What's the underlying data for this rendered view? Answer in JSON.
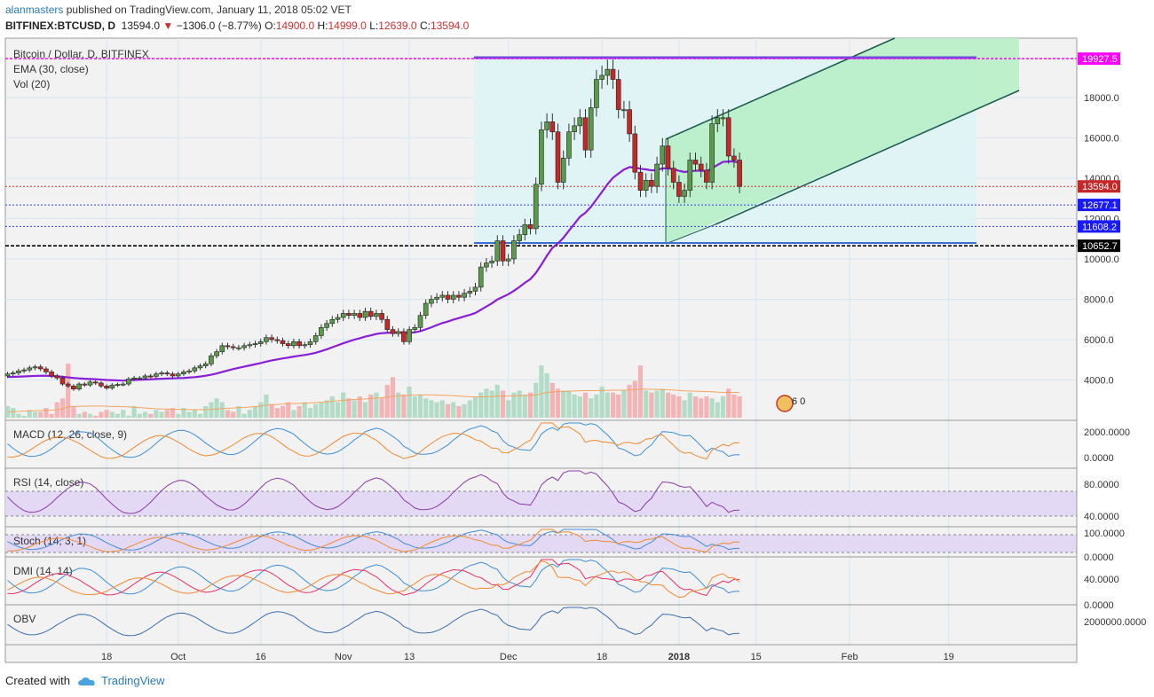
{
  "header": {
    "author": "alanmasters",
    "published_text": "published on TradingView.com, January 11, 2018 05:02 VET",
    "symbol": "BITFINEX:BTCUSD, D",
    "last": "13594.0",
    "arrow": "▼",
    "change": "−1306.0 (−8.77%)",
    "o_label": "O:",
    "o_value": "14900.0",
    "h_label": "H:",
    "h_value": "14999.0",
    "l_label": "L:",
    "l_value": "12639.0",
    "c_label": "C:",
    "c_value": "13594.0"
  },
  "footer": {
    "created_with": "Created with",
    "brand": "TradingView"
  },
  "chart_data": {
    "type": "candlestick",
    "title": "Bitcoin / Dollar, D, BITFINEX",
    "indicators_main": [
      "EMA (30, close)",
      "Vol (20)"
    ],
    "ylim": [
      2000,
      21000
    ],
    "price_ticks": [
      "4000.0",
      "6000.0",
      "8000.0",
      "10000.0",
      "12000.0",
      "14000.0",
      "16000.0",
      "18000.0"
    ],
    "x_ticks": [
      {
        "day": 18,
        "label": "18"
      },
      {
        "day": 31,
        "label": "Oct"
      },
      {
        "day": 46,
        "label": "16"
      },
      {
        "day": 61,
        "label": "Nov"
      },
      {
        "day": 73,
        "label": "13"
      },
      {
        "day": 91,
        "label": "Dec"
      },
      {
        "day": 108,
        "label": "18"
      },
      {
        "day": 122,
        "label": "2018"
      },
      {
        "day": 136,
        "label": "15"
      },
      {
        "day": 153,
        "label": "Feb"
      },
      {
        "day": 171,
        "label": "19"
      }
    ],
    "price_labels": [
      {
        "value": 19927.5,
        "label": "19927.5",
        "color": "#ff00ff"
      },
      {
        "value": 13594.0,
        "label": "13594.0",
        "color": "#c62828"
      },
      {
        "value": 12677.1,
        "label": "12677.1",
        "color": "#1a1aff"
      },
      {
        "value": 11608.2,
        "label": "11608.2",
        "color": "#1a1aff"
      },
      {
        "value": 10652.7,
        "label": "10652.7",
        "color": "#000000"
      }
    ],
    "close": [
      4300,
      4350,
      4450,
      4500,
      4600,
      4650,
      4550,
      4400,
      4200,
      4100,
      3800,
      3700,
      3550,
      3800,
      3750,
      3900,
      3850,
      3700,
      3600,
      3750,
      3780,
      3800,
      4050,
      4100,
      4100,
      4200,
      4180,
      4300,
      4350,
      4300,
      4200,
      4300,
      4400,
      4450,
      4600,
      4700,
      4800,
      5200,
      5400,
      5700,
      5650,
      5600,
      5600,
      5700,
      5750,
      5800,
      5900,
      6100,
      6000,
      5950,
      5800,
      5700,
      5900,
      5700,
      5750,
      5900,
      6200,
      6600,
      6800,
      7000,
      7100,
      7300,
      7200,
      7300,
      7100,
      7400,
      7150,
      7300,
      7000,
      6500,
      6300,
      6400,
      5900,
      6500,
      6600,
      7200,
      7800,
      8000,
      8100,
      8200,
      8000,
      8200,
      8100,
      8300,
      8400,
      8600,
      9600,
      9800,
      9900,
      10900,
      9900,
      10000,
      10900,
      11200,
      11700,
      11500,
      13700,
      16400,
      16800,
      16300,
      13800,
      15000,
      16300,
      16600,
      17000,
      15400,
      17500,
      18900,
      19100,
      19400,
      18900,
      17400,
      17400,
      16200,
      14300,
      13400,
      13900,
      13600,
      14700,
      15600,
      14500,
      13800,
      13100,
      13400,
      14900,
      14700,
      14400,
      13800,
      16700,
      17000,
      17000,
      15100,
      14900,
      13600
    ],
    "ema": [
      4150,
      4155,
      4165,
      4175,
      4190,
      4200,
      4210,
      4210,
      4200,
      4180,
      4160,
      4130,
      4100,
      4080,
      4060,
      4050,
      4040,
      4020,
      4000,
      3990,
      3980,
      3970,
      3990,
      4000,
      4010,
      4020,
      4030,
      4050,
      4060,
      4070,
      4080,
      4090,
      4100,
      4120,
      4140,
      4170,
      4210,
      4260,
      4320,
      4400,
      4470,
      4540,
      4600,
      4660,
      4720,
      4780,
      4840,
      4910,
      4970,
      5020,
      5070,
      5110,
      5160,
      5200,
      5240,
      5290,
      5350,
      5430,
      5520,
      5620,
      5720,
      5820,
      5910,
      6000,
      6070,
      6150,
      6210,
      6280,
      6320,
      6340,
      6340,
      6350,
      6330,
      6340,
      6360,
      6420,
      6510,
      6610,
      6720,
      6820,
      6900,
      6990,
      7070,
      7150,
      7230,
      7320,
      7480,
      7640,
      7800,
      7990,
      8120,
      8250,
      8420,
      8610,
      8820,
      9000,
      9310,
      9720,
      10160,
      10550,
      10770,
      11050,
      11400,
      11740,
      12090,
      12290,
      12580,
      12950,
      13320,
      13700,
      14020,
      14230,
      14430,
      14550,
      14540,
      14470,
      14440,
      14390,
      14410,
      14490,
      14490,
      14450,
      14370,
      14310,
      14350,
      14370,
      14380,
      14340,
      14490,
      14660,
      14810,
      14830,
      14830,
      14760
    ],
    "volume": [
      2600,
      2500,
      2200,
      2100,
      2400,
      2300,
      2300,
      2500,
      2200,
      2800,
      3000,
      4800,
      2600,
      2200,
      2300,
      2200,
      2100,
      2300,
      2400,
      2300,
      2200,
      2400,
      2100,
      2600,
      2200,
      2300,
      2200,
      2400,
      2300,
      2400,
      2500,
      2200,
      2500,
      2300,
      2400,
      2200,
      2600,
      2800,
      3000,
      2800,
      2400,
      2300,
      2600,
      2200,
      2400,
      2600,
      2800,
      3200,
      2700,
      2500,
      2600,
      2800,
      2400,
      2600,
      2800,
      2500,
      2700,
      2800,
      2900,
      3100,
      2800,
      3300,
      3000,
      2900,
      3100,
      2800,
      3200,
      3300,
      3000,
      3700,
      4100,
      3300,
      3200,
      3600,
      3100,
      3200,
      3000,
      2900,
      2800,
      2900,
      2700,
      2800,
      2600,
      2700,
      2900,
      3100,
      3300,
      3500,
      3400,
      3700,
      3400,
      2900,
      3300,
      3400,
      3200,
      3300,
      3800,
      4700,
      4300,
      3800,
      3500,
      3400,
      3400,
      3200,
      3100,
      3300,
      3000,
      3200,
      3600,
      3300,
      3300,
      3200,
      3400,
      3700,
      3900,
      4700,
      3400,
      3300,
      3400,
      3500,
      3300,
      3200,
      3100,
      2900,
      3300,
      3100,
      3000,
      3100,
      3000,
      2800,
      3100,
      3500,
      3200,
      3100
    ],
    "volume_ma": [
      2300,
      2310,
      2320,
      2340,
      2350,
      2360,
      2370,
      2380,
      2390,
      2410,
      2450,
      2560,
      2580,
      2590,
      2590,
      2600,
      2600,
      2600,
      2590,
      2580,
      2580,
      2570,
      2560,
      2540,
      2520,
      2500,
      2480,
      2460,
      2450,
      2440,
      2440,
      2430,
      2430,
      2420,
      2410,
      2410,
      2420,
      2430,
      2450,
      2470,
      2490,
      2500,
      2520,
      2530,
      2550,
      2570,
      2600,
      2650,
      2670,
      2680,
      2700,
      2720,
      2730,
      2740,
      2750,
      2760,
      2780,
      2800,
      2820,
      2850,
      2870,
      2900,
      2920,
      2940,
      2960,
      2970,
      2990,
      3010,
      3030,
      3060,
      3100,
      3120,
      3140,
      3160,
      3170,
      3180,
      3180,
      3180,
      3170,
      3160,
      3150,
      3140,
      3120,
      3100,
      3080,
      3070,
      3070,
      3080,
      3090,
      3110,
      3120,
      3120,
      3130,
      3140,
      3150,
      3160,
      3180,
      3240,
      3300,
      3330,
      3350,
      3360,
      3370,
      3380,
      3390,
      3400,
      3400,
      3400,
      3410,
      3410,
      3420,
      3420,
      3420,
      3430,
      3440,
      3480,
      3480,
      3470,
      3460,
      3450,
      3440,
      3430,
      3410,
      3390,
      3380,
      3370,
      3360,
      3350,
      3340,
      3320,
      3310,
      3310,
      3310,
      3300
    ],
    "panes": [
      {
        "name": "macd",
        "label": "MACD (12, 26, close, 9)",
        "ticks": [
          "2000.0000",
          "0.0000"
        ]
      },
      {
        "name": "rsi",
        "label": "RSI (14, close)",
        "ticks": [
          "80.0000",
          "40.0000"
        ]
      },
      {
        "name": "stoch",
        "label": "Stoch (14, 3, 1)",
        "ticks": [
          "100.0000",
          "0.0000"
        ]
      },
      {
        "name": "dmi",
        "label": "DMI (14, 14)",
        "ticks": [
          "40.0000",
          "0.0000"
        ]
      },
      {
        "name": "obv",
        "label": "OBV",
        "ticks": [
          "2000000.0000"
        ]
      }
    ],
    "overlay_badge": "6 0"
  }
}
